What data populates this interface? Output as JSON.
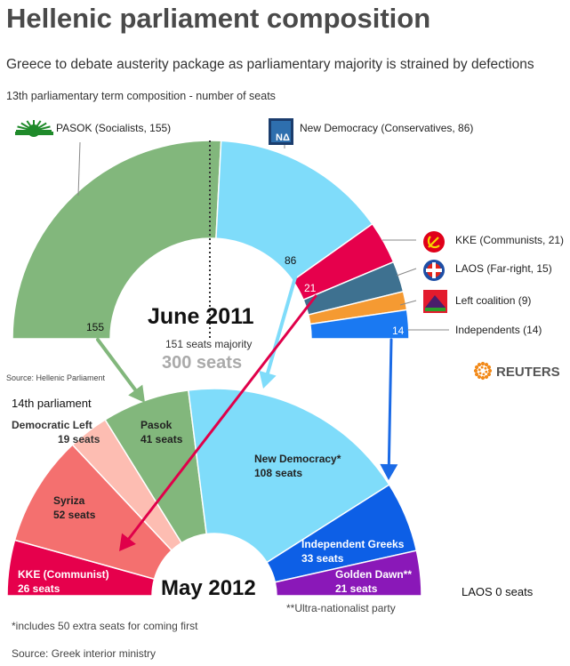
{
  "header": {
    "title": "Hellenic parliament composition",
    "subtitle": "Greece to debate austerity package as parliamentary majority is strained by defections",
    "term13_label": "13th parliamentary term composition - number of seats"
  },
  "footer": {
    "source_top": "Source: Hellenic Parliament",
    "term14_label": "14th parliament",
    "majority_label": "151 seats majority",
    "total_label": "300 seats",
    "footnote1": "*includes 50 extra seats for coming first",
    "footnote2": "**Ultra-nationalist party",
    "source_bottom": "Source: Greek interior ministry",
    "laos_zero": "LAOS 0 seats",
    "logo_text": "REUTERS"
  },
  "colors": {
    "pasok": "#82b77c",
    "nd": "#7fdcfa",
    "kke": "#e6004c",
    "laos": "#3e7190",
    "left": "#f59a32",
    "ind": "#1a79f2",
    "syriza": "#f4706f",
    "dimar": "#fdbdb2",
    "indgreeks": "#0d5fe6",
    "golden": "#8a18b8",
    "arrow_red": "#e0004a",
    "arrow_blue": "#1a6ae6",
    "arrow_cyan": "#7fdcfa",
    "arrow_green": "#82b77c"
  },
  "chart_data": [
    {
      "type": "pie",
      "subtype": "half-donut",
      "title": "June 2011",
      "total": 300,
      "slices": [
        {
          "key": "pasok",
          "value": 155,
          "legend": "PASOK (Socialists, 155)",
          "label": "155"
        },
        {
          "key": "nd",
          "value": 86,
          "legend": "New Democracy (Conservatives, 86)",
          "label": "86"
        },
        {
          "key": "kke",
          "value": 21,
          "legend": "KKE (Communists, 21)",
          "label": "21"
        },
        {
          "key": "laos",
          "value": 15,
          "legend": "LAOS (Far-right, 15)",
          "label": ""
        },
        {
          "key": "left",
          "value": 9,
          "legend": "Left coalition (9)",
          "label": ""
        },
        {
          "key": "ind",
          "value": 14,
          "legend": "Independents (14)",
          "label": "14"
        }
      ]
    },
    {
      "type": "pie",
      "subtype": "half-donut",
      "title": "May 2012",
      "total": 300,
      "slices": [
        {
          "key": "kke",
          "value": 26,
          "name": "KKE (Communist)",
          "seats": "26 seats"
        },
        {
          "key": "syriza",
          "value": 52,
          "name": "Syriza",
          "seats": "52 seats"
        },
        {
          "key": "dimar",
          "value": 19,
          "name": "Democratic Left",
          "seats": "19 seats"
        },
        {
          "key": "pasok",
          "value": 41,
          "name": "Pasok",
          "seats": "41 seats"
        },
        {
          "key": "nd",
          "value": 108,
          "name": "New Democracy*",
          "seats": "108 seats"
        },
        {
          "key": "indgreeks",
          "value": 33,
          "name": "Independent Greeks",
          "seats": "33 seats"
        },
        {
          "key": "golden",
          "value": 21,
          "name": "Golden Dawn**",
          "seats": "21 seats"
        }
      ]
    }
  ]
}
